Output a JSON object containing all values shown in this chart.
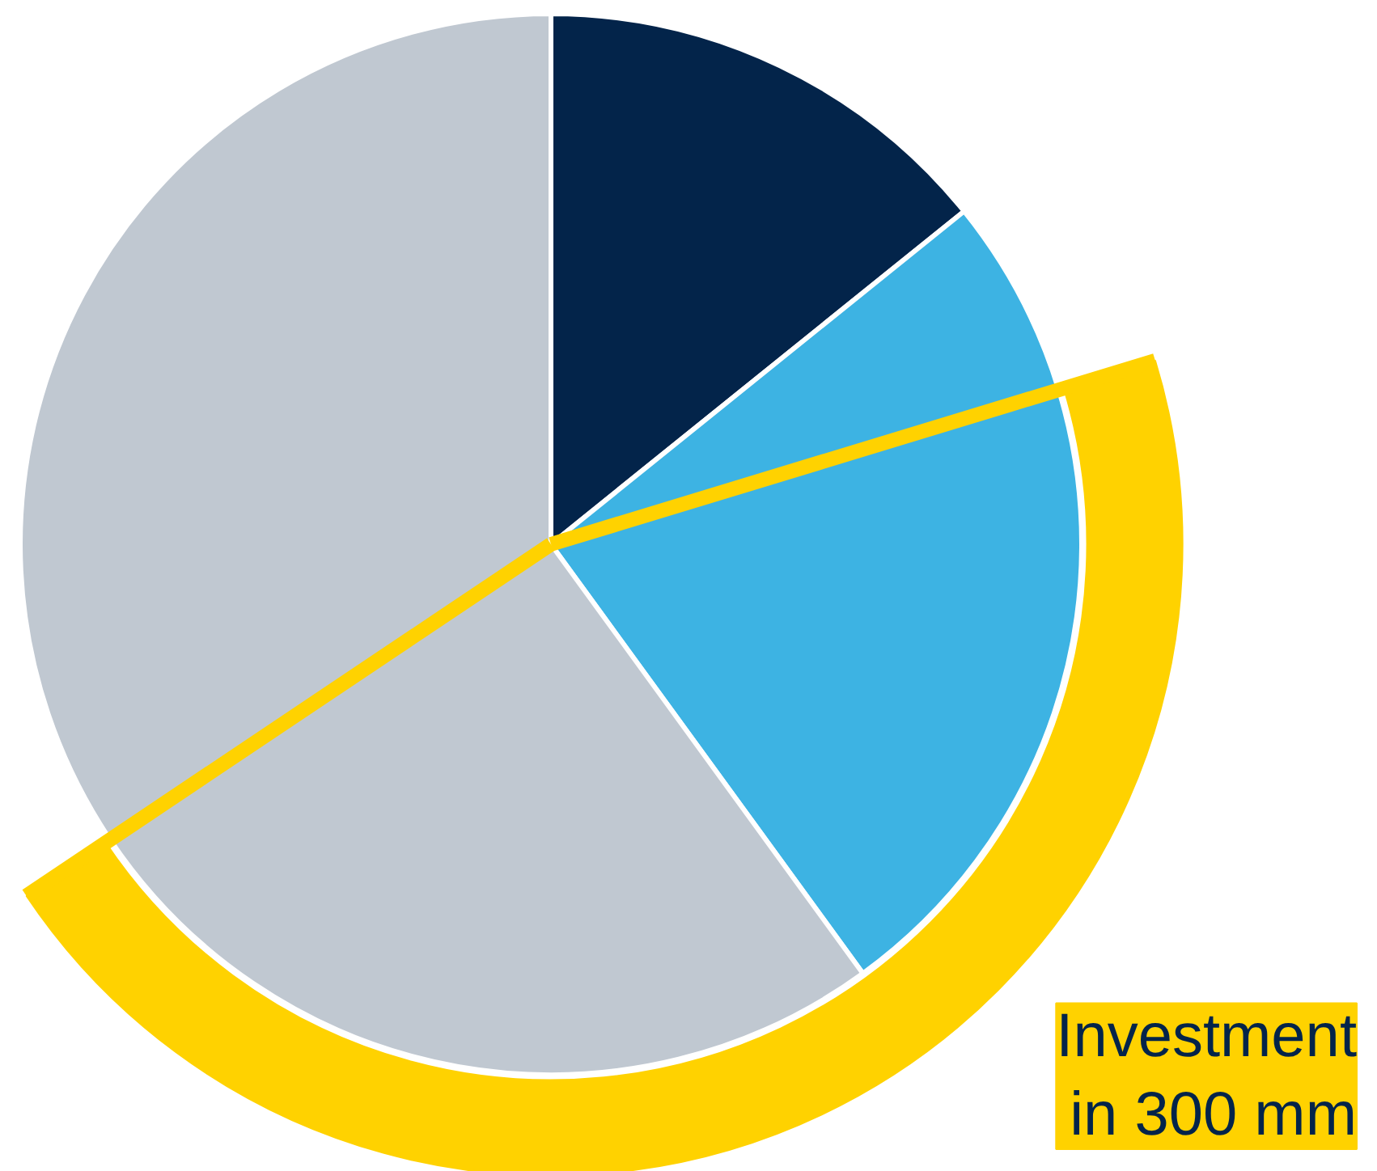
{
  "chart_data": {
    "type": "pie",
    "categories": [
      null,
      null,
      null,
      null,
      null
    ],
    "values": [
      14.2,
      6.1,
      19.7,
      25.6,
      34.4
    ],
    "colors": [
      "#03244a",
      "#3db3e3",
      "#3db3e3",
      "#c0c8d1",
      "#c0c8d1"
    ],
    "annotations": [
      "Investment\nin 300 mm"
    ]
  }
}
